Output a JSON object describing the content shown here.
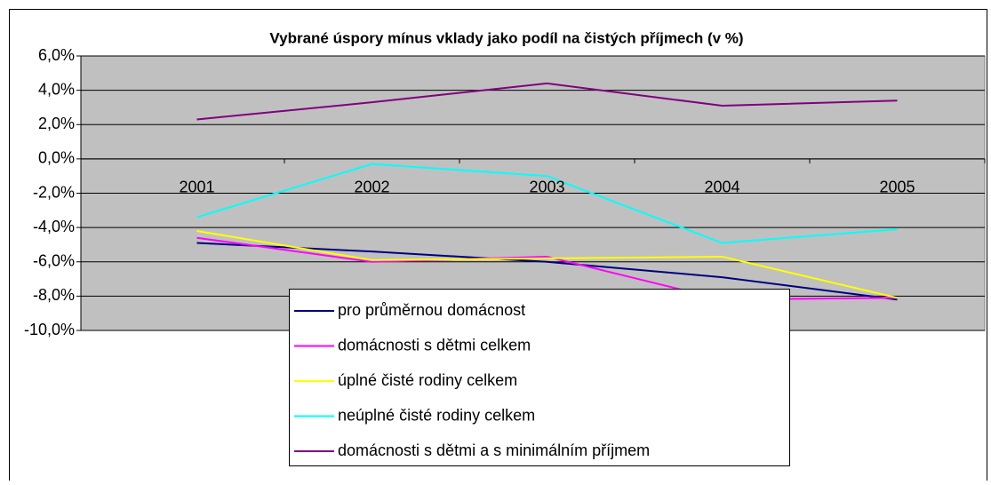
{
  "chart_data": {
    "type": "line",
    "title": "Vybrané úspory mínus vklady jako podíl na čistých příjmech (v %)",
    "categories": [
      "2001",
      "2002",
      "2003",
      "2004",
      "2005"
    ],
    "series": [
      {
        "name": "pro průměrnou domácnost",
        "color": "#000080",
        "values": [
          -4.9,
          -5.4,
          -6.0,
          -6.9,
          -8.2
        ]
      },
      {
        "name": "domácnosti s dětmi celkem",
        "color": "#ff00ff",
        "values": [
          -4.6,
          -6.0,
          -5.7,
          -8.2,
          -8.1
        ]
      },
      {
        "name": "úplné čisté rodiny celkem",
        "color": "#ffff00",
        "values": [
          -4.2,
          -5.9,
          -5.8,
          -5.7,
          -8.1
        ]
      },
      {
        "name": "neúplné čisté rodiny celkem",
        "color": "#00ffff",
        "values": [
          -3.4,
          -0.3,
          -1.0,
          -4.9,
          -4.1
        ]
      },
      {
        "name": "domácnosti s dětmi a s minimálním příjmem",
        "color": "#800080",
        "values": [
          2.3,
          3.3,
          4.4,
          3.1,
          3.4
        ]
      }
    ],
    "ylim": [
      -10,
      6
    ],
    "yticks": [
      {
        "value": 6,
        "label": "6,0%"
      },
      {
        "value": 4,
        "label": "4,0%"
      },
      {
        "value": 2,
        "label": "2,0%"
      },
      {
        "value": 0,
        "label": "0,0%"
      },
      {
        "value": -2,
        "label": "-2,0%"
      },
      {
        "value": -4,
        "label": "-4,0%"
      },
      {
        "value": -6,
        "label": "-6,0%"
      },
      {
        "value": -8,
        "label": "-8,0%"
      },
      {
        "value": -10,
        "label": "-10,0%"
      }
    ],
    "grid": true
  }
}
